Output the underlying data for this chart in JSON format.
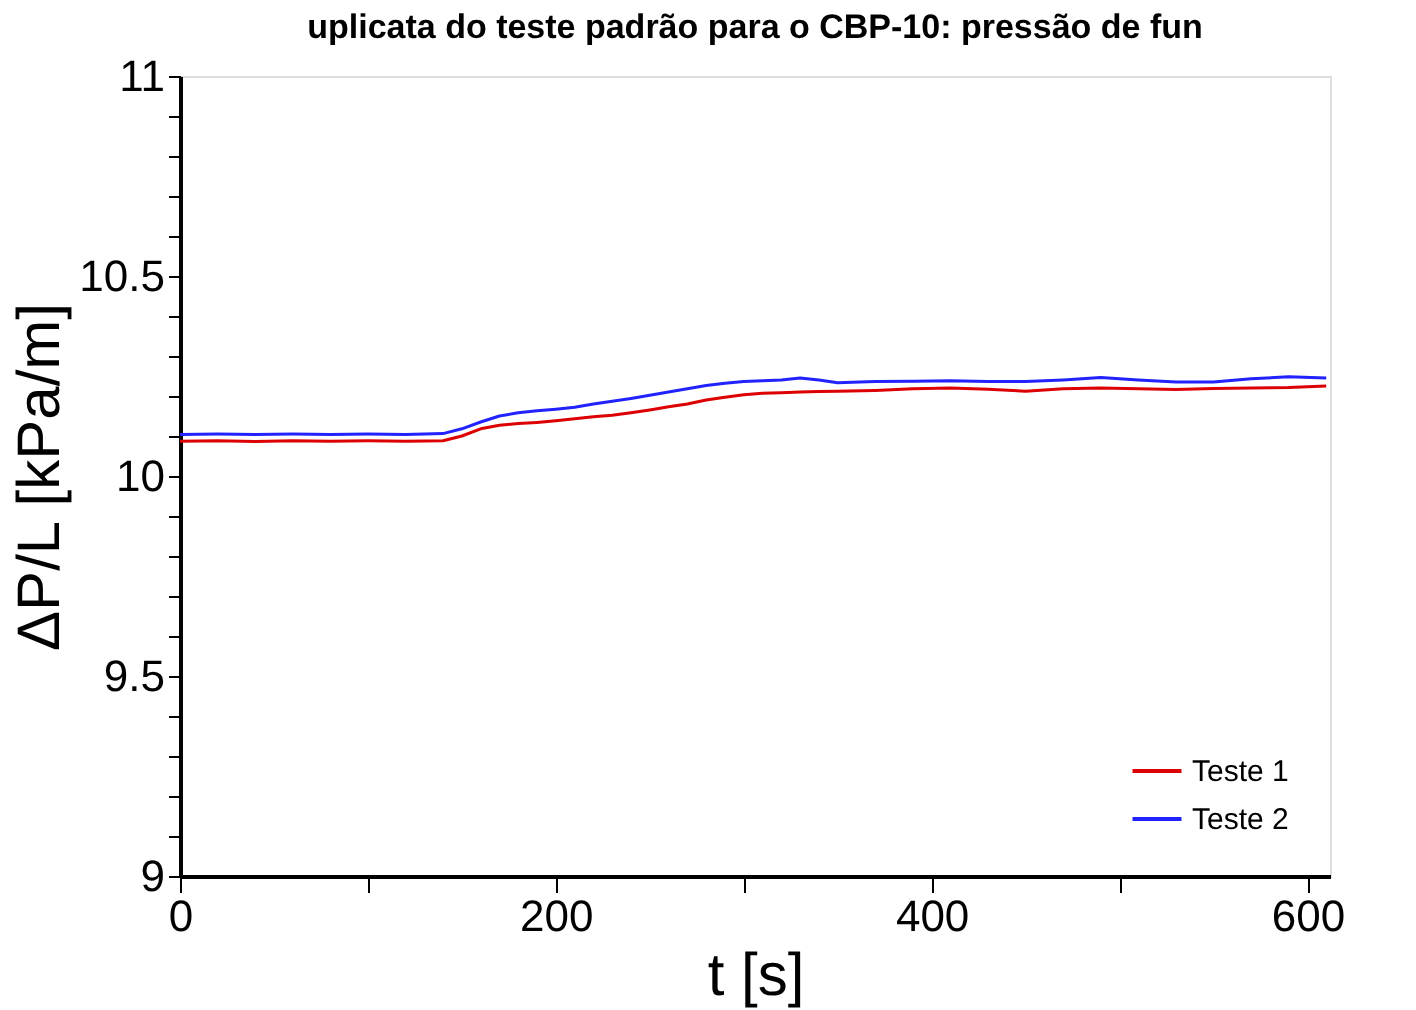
{
  "chart_data": {
    "type": "line",
    "title": "uplicata do teste padrão para o CBP-10: pressão de fun",
    "xlabel": "t [s]",
    "ylabel": "ΔP/L [kPa/m]",
    "x": [
      0,
      20,
      40,
      60,
      80,
      100,
      120,
      140,
      150,
      160,
      170,
      180,
      190,
      200,
      210,
      220,
      230,
      240,
      250,
      260,
      270,
      280,
      290,
      300,
      310,
      320,
      330,
      340,
      350,
      370,
      390,
      410,
      430,
      450,
      470,
      490,
      510,
      530,
      550,
      570,
      590,
      610
    ],
    "series": [
      {
        "name": "Teste 1",
        "color": "#dd0000",
        "values": [
          10.087,
          10.088,
          10.086,
          10.088,
          10.087,
          10.088,
          10.087,
          10.088,
          10.1,
          10.118,
          10.127,
          10.131,
          10.134,
          10.138,
          10.143,
          10.148,
          10.152,
          10.158,
          10.165,
          10.173,
          10.18,
          10.19,
          10.197,
          10.203,
          10.207,
          10.208,
          10.21,
          10.211,
          10.212,
          10.214,
          10.218,
          10.22,
          10.217,
          10.212,
          10.218,
          10.22,
          10.218,
          10.216,
          10.219,
          10.22,
          10.221,
          10.225
        ]
      },
      {
        "name": "Teste 2",
        "color": "#2222ff",
        "values": [
          10.104,
          10.105,
          10.104,
          10.105,
          10.104,
          10.105,
          10.104,
          10.106,
          10.118,
          10.135,
          10.15,
          10.158,
          10.163,
          10.167,
          10.172,
          10.18,
          10.187,
          10.194,
          10.202,
          10.21,
          10.218,
          10.226,
          10.232,
          10.236,
          10.238,
          10.24,
          10.245,
          10.24,
          10.233,
          10.236,
          10.237,
          10.238,
          10.236,
          10.236,
          10.24,
          10.246,
          10.24,
          10.235,
          10.235,
          10.243,
          10.248,
          10.245
        ]
      }
    ],
    "xlim": [
      0,
      612
    ],
    "xticks": [
      0,
      {
        "value": 100,
        "label": null
      },
      200,
      {
        "value": 300,
        "label": null
      },
      400,
      {
        "value": 500,
        "label": null
      },
      600
    ],
    "ylim": [
      9,
      11
    ],
    "yticks": [
      9,
      {
        "value": 9.1,
        "label": null
      },
      {
        "value": 9.2,
        "label": null
      },
      {
        "value": 9.3,
        "label": null
      },
      {
        "value": 9.4,
        "label": null
      },
      9.5,
      {
        "value": 9.6,
        "label": null
      },
      {
        "value": 9.7,
        "label": null
      },
      {
        "value": 9.8,
        "label": null
      },
      {
        "value": 9.9,
        "label": null
      },
      10,
      {
        "value": 10.1,
        "label": null
      },
      {
        "value": 10.2,
        "label": null
      },
      {
        "value": 10.3,
        "label": null
      },
      {
        "value": 10.4,
        "label": null
      },
      10.5,
      {
        "value": 10.6,
        "label": null
      },
      {
        "value": 10.7,
        "label": null
      },
      {
        "value": 10.8,
        "label": null
      },
      {
        "value": 10.9,
        "label": null
      },
      11
    ],
    "grid": false,
    "legend": "bottom right",
    "marker": "none",
    "line_style": "solid"
  }
}
